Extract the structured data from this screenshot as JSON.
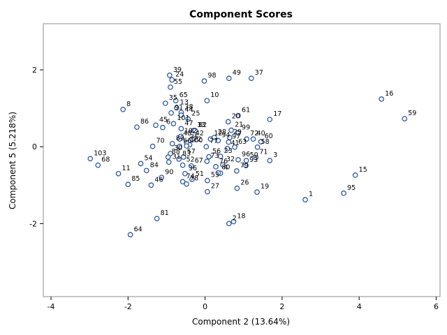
{
  "chart_data": {
    "type": "scatter",
    "title": "Component Scores",
    "xlabel": "Component 2 (13.64%)",
    "ylabel": "Component 5 (5.218%)",
    "xlim": [
      -4.2,
      6.1
    ],
    "ylim": [
      -3.9,
      3.2
    ],
    "xticks": [
      -4,
      -2,
      0,
      2,
      4,
      6
    ],
    "yticks": [
      -2,
      0,
      2
    ],
    "grid": false,
    "marker": {
      "shape": "circle",
      "fill": "#ffffff",
      "stroke": "#1f4e9c"
    },
    "points": [
      {
        "label": "1",
        "x": 2.6,
        "y": -1.38
      },
      {
        "label": "2",
        "x": 0.62,
        "y": -2.0
      },
      {
        "label": "3",
        "x": 1.68,
        "y": -0.36
      },
      {
        "label": "4",
        "x": 0.4,
        "y": -0.69
      },
      {
        "label": "6",
        "x": -1.1,
        "y": 0.5
      },
      {
        "label": "8",
        "x": -2.13,
        "y": 0.97
      },
      {
        "label": "10",
        "x": 0.05,
        "y": 1.2
      },
      {
        "label": "11",
        "x": -2.25,
        "y": -0.7
      },
      {
        "label": "12",
        "x": 0.14,
        "y": 0.2
      },
      {
        "label": "13",
        "x": -0.74,
        "y": 1.01
      },
      {
        "label": "15",
        "x": 3.9,
        "y": -0.74
      },
      {
        "label": "16",
        "x": 4.58,
        "y": 1.24
      },
      {
        "label": "17",
        "x": 1.68,
        "y": 0.71
      },
      {
        "label": "18",
        "x": 0.74,
        "y": -1.95
      },
      {
        "label": "19",
        "x": 1.35,
        "y": -1.18
      },
      {
        "label": "20",
        "x": 0.6,
        "y": 0.65
      },
      {
        "label": "21",
        "x": 0.68,
        "y": 0.43
      },
      {
        "label": "22",
        "x": -0.4,
        "y": 0.05
      },
      {
        "label": "23",
        "x": 0.4,
        "y": -0.25
      },
      {
        "label": "24",
        "x": -0.86,
        "y": 1.74
      },
      {
        "label": "25",
        "x": -0.44,
        "y": 0.72
      },
      {
        "label": "26",
        "x": 0.83,
        "y": -1.08
      },
      {
        "label": "27",
        "x": 0.06,
        "y": -1.17
      },
      {
        "label": "28",
        "x": 0.24,
        "y": 0.24
      },
      {
        "label": "29",
        "x": 0.64,
        "y": 0.24
      },
      {
        "label": "30",
        "x": -0.9,
        "y": -0.18
      },
      {
        "label": "31",
        "x": -0.94,
        "y": -0.4
      },
      {
        "label": "32",
        "x": 0.46,
        "y": -0.47
      },
      {
        "label": "33",
        "x": -0.3,
        "y": 0.42
      },
      {
        "label": "35",
        "x": -1.03,
        "y": 1.13
      },
      {
        "label": "36",
        "x": -0.52,
        "y": -0.7
      },
      {
        "label": "37",
        "x": 1.2,
        "y": 1.78
      },
      {
        "label": "38",
        "x": -0.62,
        "y": 0.89
      },
      {
        "label": "39",
        "x": -0.92,
        "y": 1.86
      },
      {
        "label": "40",
        "x": 1.25,
        "y": 0.2
      },
      {
        "label": "41",
        "x": 0.58,
        "y": -0.05
      },
      {
        "label": "42",
        "x": -0.34,
        "y": 0.2
      },
      {
        "label": "44",
        "x": -0.62,
        "y": 0.82
      },
      {
        "label": "45",
        "x": -1.28,
        "y": 0.56
      },
      {
        "label": "46",
        "x": -1.4,
        "y": -1.0
      },
      {
        "label": "47",
        "x": -0.62,
        "y": 0.47
      },
      {
        "label": "48",
        "x": -0.66,
        "y": 0.2
      },
      {
        "label": "49",
        "x": 0.62,
        "y": 1.78
      },
      {
        "label": "50",
        "x": 1.07,
        "y": -0.36
      },
      {
        "label": "51",
        "x": -0.34,
        "y": -0.85
      },
      {
        "label": "52",
        "x": -0.58,
        "y": -0.48
      },
      {
        "label": "53",
        "x": 0.06,
        "y": -0.88
      },
      {
        "label": "54",
        "x": -1.67,
        "y": -0.44
      },
      {
        "label": "55",
        "x": -0.9,
        "y": 1.55
      },
      {
        "label": "56",
        "x": 0.1,
        "y": -0.26
      },
      {
        "label": "57",
        "x": -0.56,
        "y": -0.27
      },
      {
        "label": "58",
        "x": 1.36,
        "y": -0.01
      },
      {
        "label": "59",
        "x": 5.18,
        "y": 0.73
      },
      {
        "label": "60",
        "x": 1.45,
        "y": 0.13
      },
      {
        "label": "61",
        "x": 0.86,
        "y": 0.81
      },
      {
        "label": "63",
        "x": 0.77,
        "y": -0.01
      },
      {
        "label": "64",
        "x": -1.94,
        "y": -2.29
      },
      {
        "label": "65",
        "x": -0.76,
        "y": 1.2
      },
      {
        "label": "66",
        "x": -0.66,
        "y": 0.01
      },
      {
        "label": "67",
        "x": -0.36,
        "y": -0.5
      },
      {
        "label": "68",
        "x": -2.78,
        "y": -0.48
      },
      {
        "label": "70",
        "x": -1.36,
        "y": 0.01
      },
      {
        "label": "71",
        "x": 1.32,
        "y": -0.28
      },
      {
        "label": "72",
        "x": 1.08,
        "y": 0.2
      },
      {
        "label": "73",
        "x": 0.05,
        "y": -0.38
      },
      {
        "label": "74",
        "x": -0.58,
        "y": -0.91
      },
      {
        "label": "75",
        "x": -0.48,
        "y": 0.1
      },
      {
        "label": "76",
        "x": 0.28,
        "y": -0.52
      },
      {
        "label": "77",
        "x": 0.03,
        "y": 0.0
      },
      {
        "label": "78",
        "x": -0.48,
        "y": -0.97
      },
      {
        "label": "79",
        "x": 0.82,
        "y": -0.63
      },
      {
        "label": "80",
        "x": 0.34,
        "y": -0.68
      },
      {
        "label": "81",
        "x": -1.25,
        "y": -1.87
      },
      {
        "label": "82",
        "x": -0.26,
        "y": 0.42
      },
      {
        "label": "83",
        "x": -0.68,
        "y": -0.32
      },
      {
        "label": "84",
        "x": -1.52,
        "y": -0.62
      },
      {
        "label": "85",
        "x": -2.0,
        "y": -0.98
      },
      {
        "label": "86",
        "x": -1.77,
        "y": 0.51
      },
      {
        "label": "88",
        "x": -0.96,
        "y": -0.27
      },
      {
        "label": "89",
        "x": -0.85,
        "y": 0.08
      },
      {
        "label": "90",
        "x": -1.13,
        "y": -0.8
      },
      {
        "label": "91",
        "x": -0.88,
        "y": 0.88
      },
      {
        "label": "93",
        "x": 1.06,
        "y": -0.49
      },
      {
        "label": "94",
        "x": 0.34,
        "y": 0.16
      },
      {
        "label": "95",
        "x": 3.6,
        "y": -1.21
      },
      {
        "label": "96",
        "x": 0.86,
        "y": -0.34
      },
      {
        "label": "97",
        "x": 0.61,
        "y": 0.12
      },
      {
        "label": "98",
        "x": -0.02,
        "y": 1.71
      },
      {
        "label": "99",
        "x": 0.86,
        "y": 0.36
      },
      {
        "label": "100",
        "x": -0.48,
        "y": 0.02
      },
      {
        "label": "101",
        "x": -0.82,
        "y": 0.6
      },
      {
        "label": "102",
        "x": -0.63,
        "y": 0.27
      },
      {
        "label": "103",
        "x": -2.98,
        "y": -0.31
      }
    ]
  }
}
